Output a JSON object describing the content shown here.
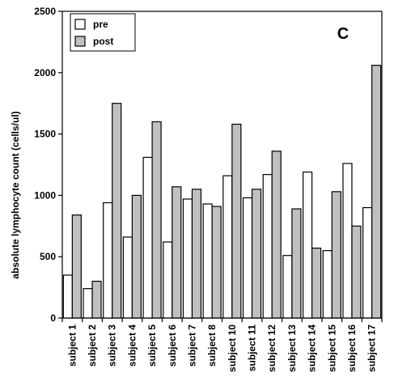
{
  "chart_data": {
    "type": "bar",
    "panel_label": "C",
    "ylabel": "absolute lymphocyte count (cells/ul)",
    "xlabel": "",
    "ylim": [
      0,
      2500
    ],
    "yticks": [
      0,
      500,
      1000,
      1500,
      2000,
      2500
    ],
    "grid": false,
    "legend": "top-left",
    "categories": [
      "subject 1",
      "subject 2",
      "subject 3",
      "subject 4",
      "subject 5",
      "subject 6",
      "subject 7",
      "subject 8",
      "subject 10",
      "subject 11",
      "subject 12",
      "subject 13",
      "subject 14",
      "subject 15",
      "subject 16",
      "subject 17"
    ],
    "series": [
      {
        "name": "pre",
        "color": "#ffffff",
        "values": [
          350,
          240,
          940,
          660,
          1310,
          620,
          970,
          930,
          1160,
          980,
          1170,
          510,
          1190,
          550,
          1260,
          900
        ]
      },
      {
        "name": "post",
        "color": "#c0c0c0",
        "values": [
          840,
          300,
          1750,
          1000,
          1600,
          1070,
          1050,
          910,
          1580,
          1050,
          1360,
          890,
          570,
          1030,
          750,
          2060
        ]
      }
    ]
  }
}
